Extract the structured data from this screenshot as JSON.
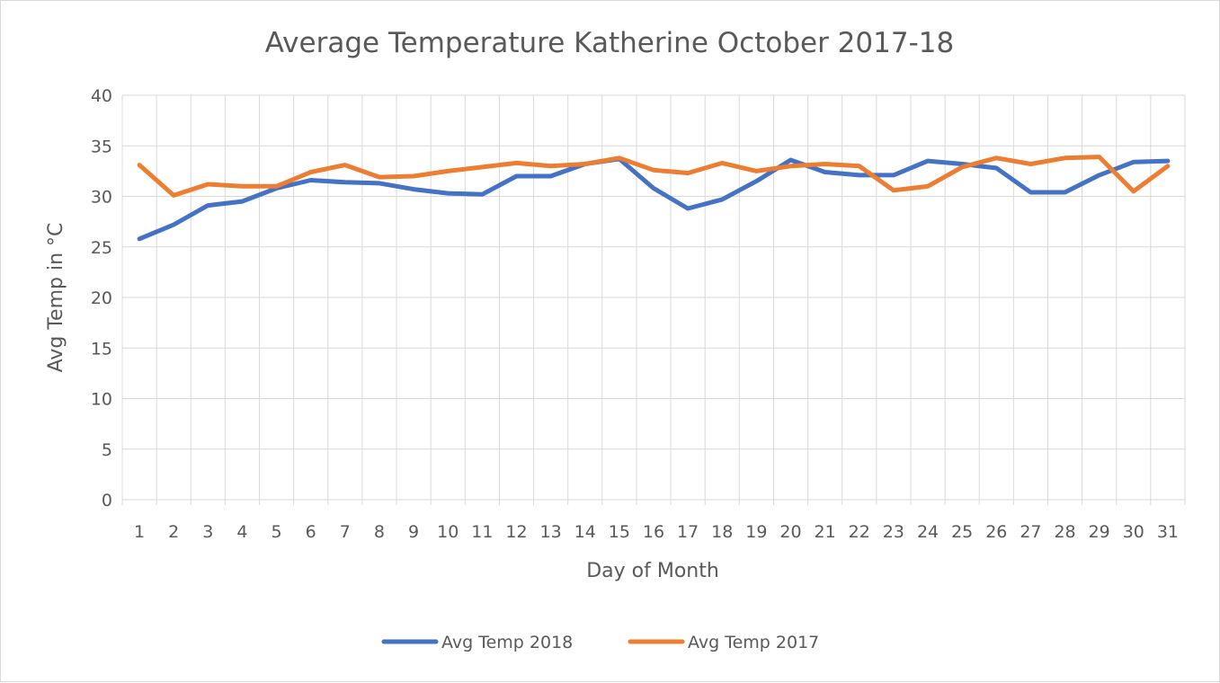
{
  "chart_data": {
    "type": "line",
    "title": "Average Temperature Katherine October 2017-18",
    "xlabel": "Day of Month",
    "ylabel": "Avg Temp in °C",
    "ylim": [
      0,
      40
    ],
    "yticks": [
      "0",
      "5",
      "10",
      "15",
      "20",
      "25",
      "30",
      "35",
      "40"
    ],
    "categories": [
      "1",
      "2",
      "3",
      "4",
      "5",
      "6",
      "7",
      "8",
      "9",
      "10",
      "11",
      "12",
      "13",
      "14",
      "15",
      "16",
      "17",
      "18",
      "19",
      "20",
      "21",
      "22",
      "23",
      "24",
      "25",
      "26",
      "27",
      "28",
      "29",
      "30",
      "31"
    ],
    "grid": true,
    "legend_position": "bottom",
    "series": [
      {
        "name": "Avg Temp 2018",
        "color": "#4472C4",
        "values": [
          25.8,
          27.2,
          29.1,
          29.5,
          30.8,
          31.6,
          31.4,
          31.3,
          30.7,
          30.3,
          30.2,
          32.0,
          32.0,
          33.2,
          33.7,
          30.8,
          28.8,
          29.7,
          31.5,
          33.6,
          32.4,
          32.1,
          32.1,
          33.5,
          33.2,
          32.8,
          30.4,
          30.4,
          32.1,
          33.4,
          33.5
        ]
      },
      {
        "name": "Avg Temp 2017",
        "color": "#ED7D31",
        "values": [
          33.1,
          30.1,
          31.2,
          31.0,
          31.0,
          32.4,
          33.1,
          31.9,
          32.0,
          32.5,
          32.9,
          33.3,
          33.0,
          33.2,
          33.8,
          32.6,
          32.3,
          33.3,
          32.5,
          33.0,
          33.2,
          33.0,
          30.6,
          31.0,
          32.9,
          33.8,
          33.2,
          33.8,
          33.9,
          30.5,
          33.0
        ]
      }
    ]
  }
}
